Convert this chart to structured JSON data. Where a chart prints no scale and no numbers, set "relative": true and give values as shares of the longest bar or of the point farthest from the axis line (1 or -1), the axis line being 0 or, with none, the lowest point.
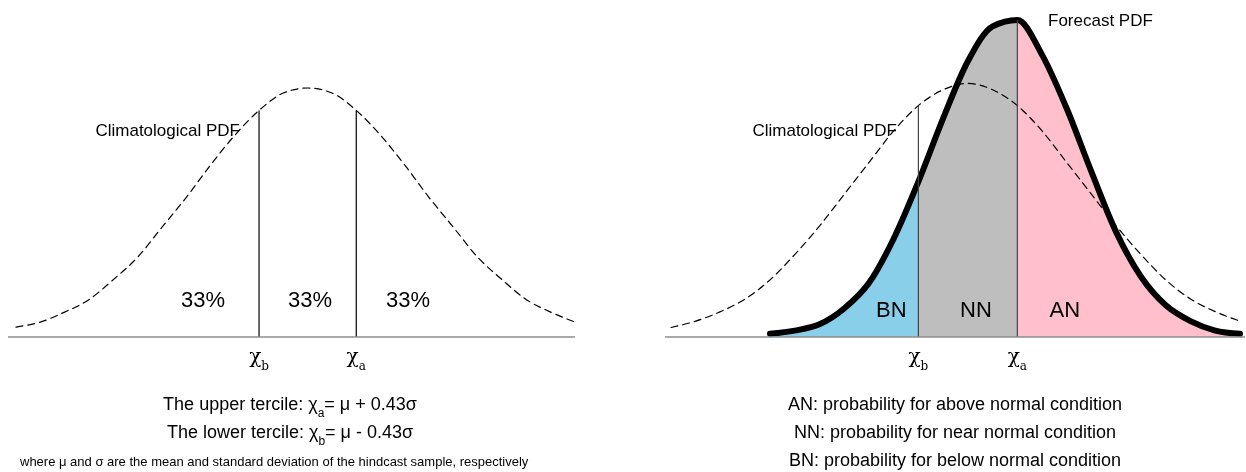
{
  "chart_data": [
    {
      "type": "line",
      "relative": true,
      "categories": [
        null,
        null,
        null,
        null,
        null,
        null,
        null,
        null,
        null,
        null,
        "χ$_{b}$",
        null,
        null,
        null,
        "χ$_{a}$",
        null,
        null,
        null,
        null,
        null,
        null,
        null,
        null,
        null
      ],
      "series": [
        {
          "name": "Climatological PDF",
          "color": "#000000",
          "line_style": "dashed",
          "values": [
            0.04,
            0.06,
            0.1,
            0.15,
            0.23,
            0.32,
            0.44,
            0.56,
            0.69,
            0.81,
            0.91,
            0.98,
            1,
            0.98,
            0.91,
            0.81,
            0.69,
            0.56,
            0.44,
            0.32,
            0.23,
            0.15,
            0.1,
            0.06
          ]
        }
      ],
      "ref_lines": [
        {
          "axis": "x",
          "value": "χ$_{b}$",
          "color": "#000000"
        },
        {
          "axis": "x",
          "value": "χ$_{a}$",
          "color": "#000000"
        }
      ],
      "annotations": [
        "33%",
        "33%",
        "33%",
        "The upper tercile:  χ$_{a}$= μ + 0.43σ",
        "The lower tercile:  χ$_{b}$= μ - 0.43σ",
        "where μ and σ are the mean and standard deviation of the hindcast sample, respectively"
      ]
    },
    {
      "type": "line",
      "relative": true,
      "categories": [
        null,
        null,
        null,
        null,
        null,
        null,
        null,
        null,
        null,
        null,
        "χ$_{b}$",
        null,
        null,
        null,
        "χ$_{a}$",
        null,
        null,
        null,
        null,
        null,
        null,
        null,
        null,
        null
      ],
      "series": [
        {
          "name": "BN",
          "type": "area",
          "color": "#89cfea",
          "values": [
            null,
            null,
            null,
            null,
            0.01,
            0.02,
            0.04,
            0.09,
            0.17,
            0.31,
            0.49,
            null,
            null,
            null,
            null,
            null,
            null,
            null,
            null,
            null,
            null,
            null,
            null,
            null
          ]
        },
        {
          "name": "NN",
          "type": "area",
          "color": "#bebebe",
          "values": [
            null,
            null,
            null,
            null,
            null,
            null,
            null,
            null,
            null,
            null,
            0.49,
            0.69,
            0.87,
            0.98,
            1,
            null,
            null,
            null,
            null,
            null,
            null,
            null,
            null,
            null
          ]
        },
        {
          "name": "AN",
          "type": "area",
          "color": "#ffc0cb",
          "values": [
            null,
            null,
            null,
            null,
            null,
            null,
            null,
            null,
            null,
            null,
            null,
            null,
            null,
            null,
            1,
            0.89,
            0.72,
            0.52,
            0.33,
            0.19,
            0.1,
            0.05,
            0.02,
            0.01
          ]
        },
        {
          "name": "Climatological PDF",
          "color": "#000000",
          "line_style": "dashed",
          "values": [
            0.03,
            0.05,
            0.08,
            0.12,
            0.18,
            0.26,
            0.35,
            0.45,
            0.55,
            0.65,
            0.73,
            0.78,
            0.8,
            0.78,
            0.73,
            0.65,
            0.55,
            0.45,
            0.35,
            0.26,
            0.18,
            0.12,
            0.08,
            0.05
          ]
        },
        {
          "name": "Forecast PDF",
          "color": "#000000",
          "line_style": "solid",
          "values": [
            null,
            null,
            null,
            null,
            0.01,
            0.02,
            0.04,
            0.09,
            0.17,
            0.31,
            0.49,
            0.69,
            0.87,
            0.98,
            1,
            0.89,
            0.72,
            0.52,
            0.33,
            0.19,
            0.1,
            0.05,
            0.02,
            0.01
          ]
        }
      ],
      "ref_lines": [
        {
          "axis": "x",
          "value": "χ$_{b}$",
          "color": "#444444"
        },
        {
          "axis": "x",
          "value": "χ$_{a}$",
          "color": "#444444"
        }
      ],
      "annotations": [
        "AN: probability for above normal condition",
        "NN: probability for near normal condition",
        "BN: probability for below normal condition"
      ]
    }
  ]
}
